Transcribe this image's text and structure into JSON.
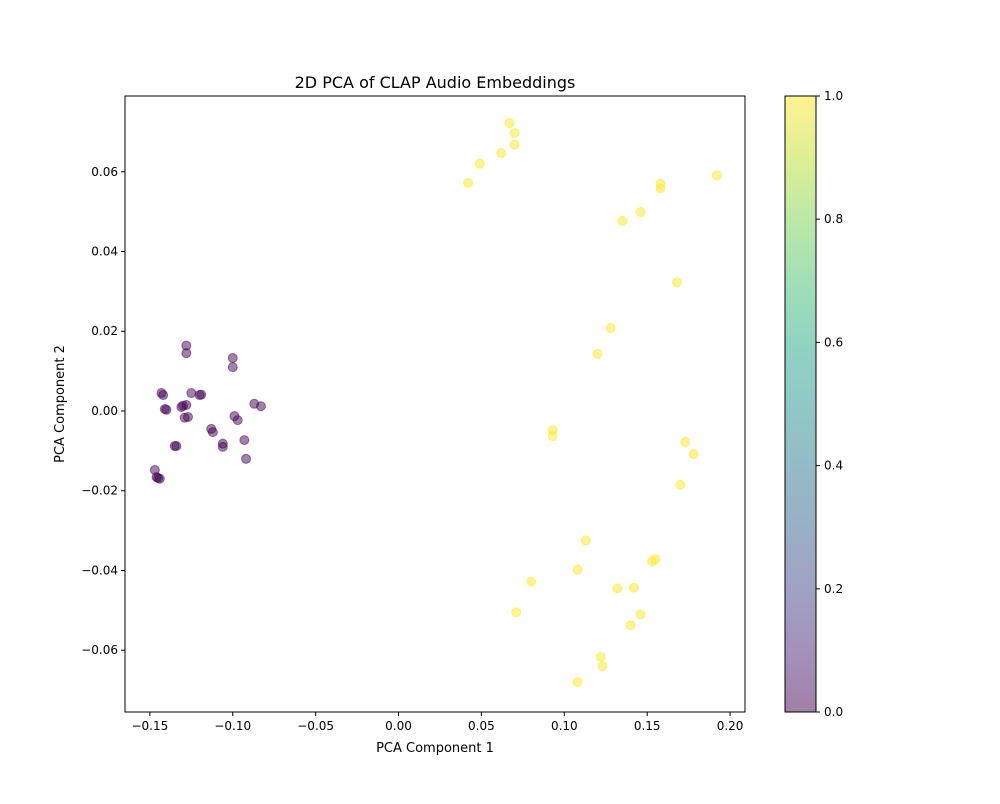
{
  "chart_data": {
    "type": "scatter",
    "title": "2D PCA of CLAP Audio Embeddings",
    "xlabel": "PCA Component 1",
    "ylabel": "PCA Component 2",
    "xlim": [
      -0.165,
      0.209
    ],
    "ylim": [
      -0.0755,
      0.079
    ],
    "xticks": [
      -0.15,
      -0.1,
      -0.05,
      0.0,
      0.05,
      0.1,
      0.15,
      0.2
    ],
    "xtick_labels": [
      "−0.15",
      "−0.10",
      "−0.05",
      "0.00",
      "0.05",
      "0.10",
      "0.15",
      "0.20"
    ],
    "yticks": [
      -0.06,
      -0.04,
      -0.02,
      0.0,
      0.02,
      0.04,
      0.06
    ],
    "ytick_labels": [
      "−0.06",
      "−0.04",
      "−0.02",
      "0.00",
      "0.02",
      "0.04",
      "0.06"
    ],
    "grid": false,
    "colormap": "viridis",
    "point_alpha": 0.5,
    "colorbar": {
      "range": [
        0.0,
        1.0
      ],
      "ticks": [
        0.0,
        0.2,
        0.4,
        0.6,
        0.8,
        1.0
      ],
      "tick_labels": [
        "0.0",
        "0.2",
        "0.4",
        "0.6",
        "0.8",
        "1.0"
      ],
      "colors": [
        "#440154",
        "#482475",
        "#414487",
        "#355f8d",
        "#2a788e",
        "#21918c",
        "#22a884",
        "#44bf70",
        "#7ad151",
        "#bddf26",
        "#fde725"
      ]
    },
    "points": [
      {
        "x": -0.143,
        "y": 0.0045,
        "c": 0
      },
      {
        "x": -0.142,
        "y": 0.004,
        "c": 0
      },
      {
        "x": -0.141,
        "y": 0.0005,
        "c": 0
      },
      {
        "x": -0.14,
        "y": 0.0003,
        "c": 0
      },
      {
        "x": -0.147,
        "y": -0.0148,
        "c": 0
      },
      {
        "x": -0.146,
        "y": -0.0166,
        "c": 0
      },
      {
        "x": -0.145,
        "y": -0.0168,
        "c": 0
      },
      {
        "x": -0.144,
        "y": -0.017,
        "c": 0
      },
      {
        "x": -0.135,
        "y": -0.0088,
        "c": 0
      },
      {
        "x": -0.134,
        "y": -0.0088,
        "c": 0
      },
      {
        "x": -0.131,
        "y": 0.001,
        "c": 0
      },
      {
        "x": -0.13,
        "y": 0.0013,
        "c": 0
      },
      {
        "x": -0.129,
        "y": -0.0017,
        "c": 0
      },
      {
        "x": -0.127,
        "y": -0.0015,
        "c": 0
      },
      {
        "x": -0.128,
        "y": 0.0015,
        "c": 0
      },
      {
        "x": -0.128,
        "y": 0.0164,
        "c": 0
      },
      {
        "x": -0.128,
        "y": 0.0145,
        "c": 0
      },
      {
        "x": -0.125,
        "y": 0.0045,
        "c": 0
      },
      {
        "x": -0.12,
        "y": 0.004,
        "c": 0
      },
      {
        "x": -0.119,
        "y": 0.0041,
        "c": 0
      },
      {
        "x": -0.113,
        "y": -0.0045,
        "c": 0
      },
      {
        "x": -0.112,
        "y": -0.0053,
        "c": 0
      },
      {
        "x": -0.106,
        "y": -0.0082,
        "c": 0
      },
      {
        "x": -0.106,
        "y": -0.009,
        "c": 0
      },
      {
        "x": -0.1,
        "y": 0.0133,
        "c": 0
      },
      {
        "x": -0.1,
        "y": 0.011,
        "c": 0
      },
      {
        "x": -0.099,
        "y": -0.0013,
        "c": 0
      },
      {
        "x": -0.097,
        "y": -0.0023,
        "c": 0
      },
      {
        "x": -0.093,
        "y": -0.0073,
        "c": 0
      },
      {
        "x": -0.092,
        "y": -0.012,
        "c": 0
      },
      {
        "x": -0.087,
        "y": 0.0018,
        "c": 0
      },
      {
        "x": -0.083,
        "y": 0.0012,
        "c": 0
      },
      {
        "x": 0.042,
        "y": 0.0572,
        "c": 1
      },
      {
        "x": 0.049,
        "y": 0.062,
        "c": 1
      },
      {
        "x": 0.062,
        "y": 0.0647,
        "c": 1
      },
      {
        "x": 0.067,
        "y": 0.0722,
        "c": 1
      },
      {
        "x": 0.07,
        "y": 0.0697,
        "c": 1
      },
      {
        "x": 0.07,
        "y": 0.0668,
        "c": 1
      },
      {
        "x": 0.135,
        "y": 0.0477,
        "c": 1
      },
      {
        "x": 0.146,
        "y": 0.0499,
        "c": 1
      },
      {
        "x": 0.158,
        "y": 0.057,
        "c": 1
      },
      {
        "x": 0.158,
        "y": 0.0558,
        "c": 1
      },
      {
        "x": 0.192,
        "y": 0.0591,
        "c": 1
      },
      {
        "x": 0.168,
        "y": 0.0323,
        "c": 1
      },
      {
        "x": 0.128,
        "y": 0.0208,
        "c": 1
      },
      {
        "x": 0.12,
        "y": 0.0143,
        "c": 1
      },
      {
        "x": 0.093,
        "y": -0.0048,
        "c": 1
      },
      {
        "x": 0.093,
        "y": -0.0063,
        "c": 1
      },
      {
        "x": 0.173,
        "y": -0.0078,
        "c": 1
      },
      {
        "x": 0.178,
        "y": -0.0108,
        "c": 1
      },
      {
        "x": 0.17,
        "y": -0.0185,
        "c": 1
      },
      {
        "x": 0.113,
        "y": -0.0325,
        "c": 1
      },
      {
        "x": 0.108,
        "y": -0.0398,
        "c": 1
      },
      {
        "x": 0.08,
        "y": -0.0428,
        "c": 1
      },
      {
        "x": 0.071,
        "y": -0.0505,
        "c": 1
      },
      {
        "x": 0.132,
        "y": -0.0445,
        "c": 1
      },
      {
        "x": 0.142,
        "y": -0.0443,
        "c": 1
      },
      {
        "x": 0.153,
        "y": -0.0377,
        "c": 1
      },
      {
        "x": 0.155,
        "y": -0.0372,
        "c": 1
      },
      {
        "x": 0.146,
        "y": -0.051,
        "c": 1
      },
      {
        "x": 0.14,
        "y": -0.0537,
        "c": 1
      },
      {
        "x": 0.122,
        "y": -0.0617,
        "c": 1
      },
      {
        "x": 0.123,
        "y": -0.064,
        "c": 1
      },
      {
        "x": 0.108,
        "y": -0.068,
        "c": 1
      }
    ]
  }
}
